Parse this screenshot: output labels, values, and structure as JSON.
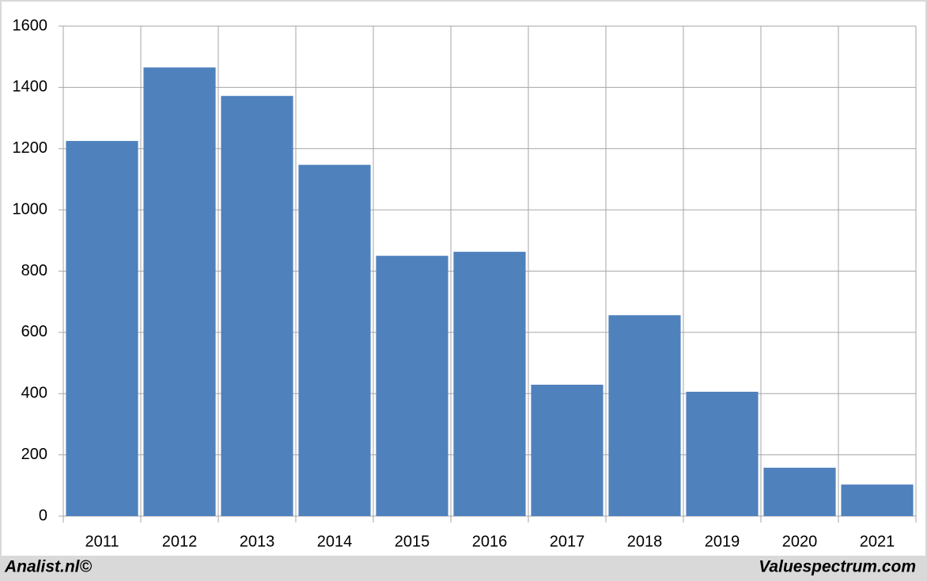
{
  "chart_data": {
    "type": "bar",
    "categories": [
      "2011",
      "2012",
      "2013",
      "2014",
      "2015",
      "2016",
      "2017",
      "2018",
      "2019",
      "2020",
      "2021"
    ],
    "values": [
      1225,
      1465,
      1372,
      1147,
      850,
      863,
      429,
      656,
      406,
      158,
      103
    ],
    "color": "#4f81bd",
    "ylim": [
      0,
      1600
    ],
    "yticks": [
      0,
      200,
      400,
      600,
      800,
      1000,
      1200,
      1400,
      1600
    ],
    "grid": true,
    "source_left": "Analist.nl©",
    "source_right": "Valuespectrum.com"
  }
}
